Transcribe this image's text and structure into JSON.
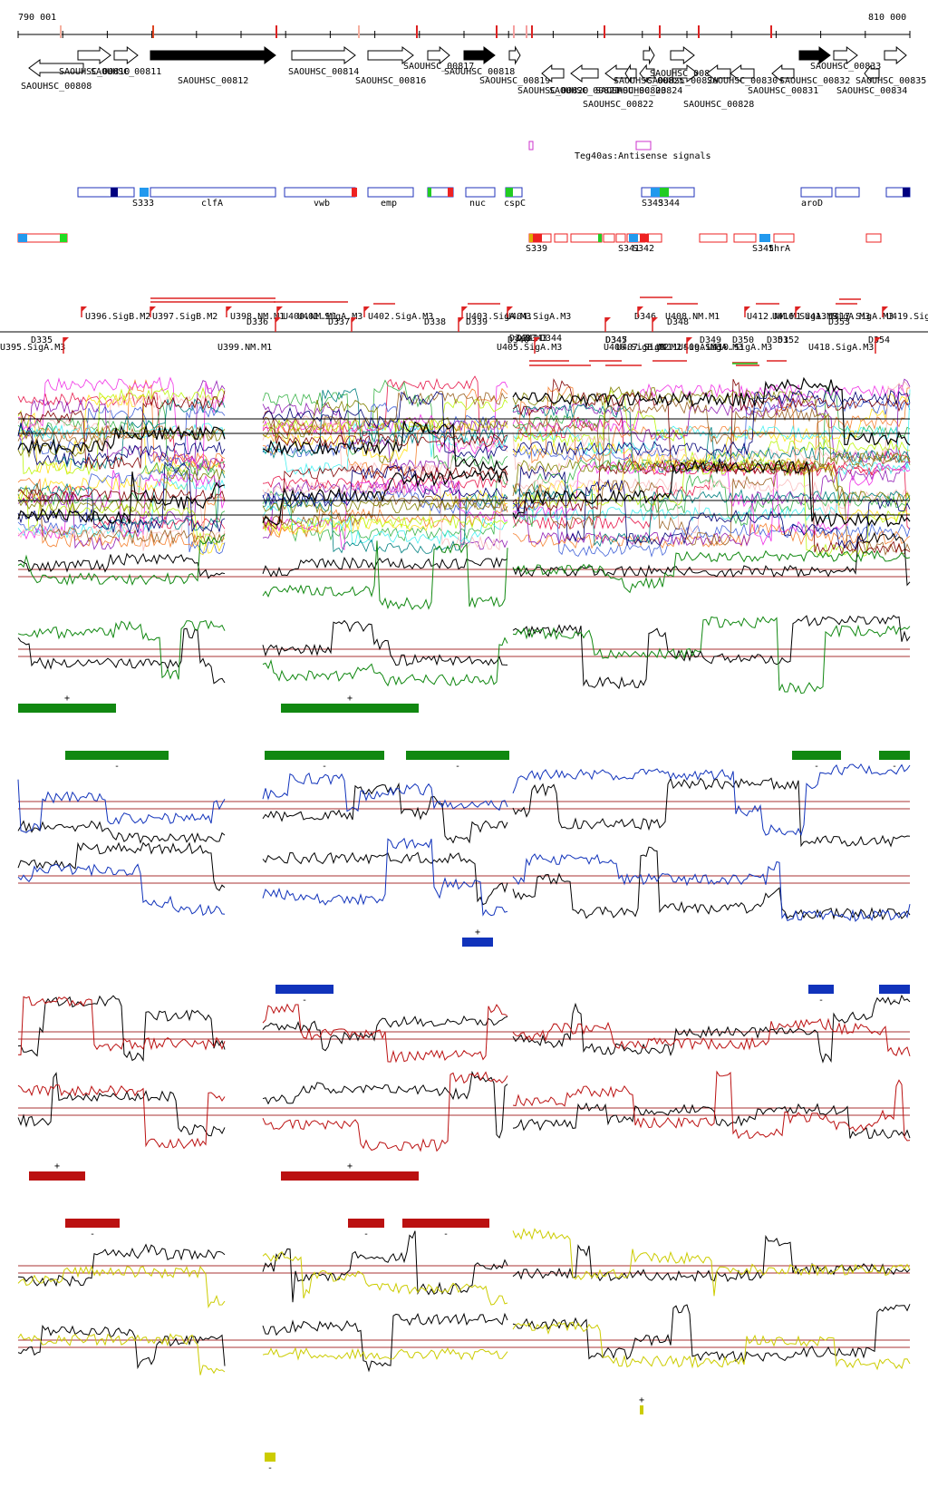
{
  "ruler": {
    "start_label": "790 001",
    "end_label": "810 000"
  },
  "colors": {
    "green": "#118811",
    "blue": "#1133bb",
    "red": "#bb1111",
    "yellow": "#cccc00",
    "black": "#000000",
    "threshold": "#aa3333",
    "magenta": "#cc33cc",
    "reg_red": "#ee2222",
    "reg_blue": "#2233bb",
    "cyan": "#2299ee"
  },
  "genes": [
    {
      "label": "SAOUHSC_00808",
      "strand": "-"
    },
    {
      "label": "SAOUHSC_00810",
      "strand": "+"
    },
    {
      "label": "SAOUHSC_00811",
      "strand": "+"
    },
    {
      "label": "SAOUHSC_00812",
      "strand": "+"
    },
    {
      "label": "SAOUHSC_00814",
      "strand": "+"
    },
    {
      "label": "SAOUHSC_00816",
      "strand": "+"
    },
    {
      "label": "SAOUHSC_00817",
      "strand": "+"
    },
    {
      "label": "SAOUHSC_00818",
      "strand": "+"
    },
    {
      "label": "SAOUHSC_00819",
      "strand": "+"
    },
    {
      "label": "SAOUHSC_00820",
      "strand": "-"
    },
    {
      "label": "SAOUHSC_00821",
      "strand": "-"
    },
    {
      "label": "SAOUHSC_00822",
      "strand": "-"
    },
    {
      "label": "SAOUHSC_00823",
      "strand": "-"
    },
    {
      "label": "SAOUHSC_00824",
      "strand": "-"
    },
    {
      "label": "SAOUHSC_00825",
      "strand": "+"
    },
    {
      "label": "SAOUHSC_00826",
      "strand": "+"
    },
    {
      "label": "SAOUHSC_00827",
      "strand": "+"
    },
    {
      "label": "SAOUHSC_00828",
      "strand": "-"
    },
    {
      "label": "SAOUHSC_00830",
      "strand": "-"
    },
    {
      "label": "SAOUHSC_00831",
      "strand": "-"
    },
    {
      "label": "SAOUHSC_00832",
      "strand": "+"
    },
    {
      "label": "SAOUHSC_00833",
      "strand": "+"
    },
    {
      "label": "SAOUHSC_00834",
      "strand": "-"
    },
    {
      "label": "SAOUHSC_00835",
      "strand": "+"
    }
  ],
  "antisense_label": "Teg40as:Antisense signals",
  "reg_labels": [
    "S333",
    "clfA",
    "vwb",
    "emp",
    "nuc",
    "cspC",
    "S343",
    "S344",
    "aroD",
    "S339",
    "S341",
    "S342",
    "S345",
    "thrA"
  ],
  "unit_labels": [
    "D335",
    "U395.SigA.M3",
    "U396.SigB.M2",
    "U397.SigB.M2",
    "U398.NM.M1",
    "U399.NM.M1",
    "D336",
    "U400.NM.M1",
    "U401.SigA.M3",
    "D337",
    "U402.SigA.M3",
    "D338",
    "U403.SigA.M3",
    "D339",
    "D340",
    "U404.SigA.M3",
    "D341",
    "D342",
    "D343",
    "D344",
    "U405.SigA.M3",
    "U406.SigB.M2",
    "D345",
    "D346",
    "D347",
    "U407.SigB.M2",
    "D348",
    "U408.NM.M1",
    "U409.SigA.M3",
    "D349",
    "U410.SigA.M3",
    "U411.SigA.M3",
    "D350",
    "D351",
    "D352",
    "U412.NM.M1",
    "U413.SigA.M3",
    "U416.SigA.M3",
    "D353",
    "U417.SigA.M3",
    "U418.SigA.M3",
    "U419.SigA.M3",
    "D354"
  ],
  "segment_labels": {
    "plus": "+",
    "minus": "-"
  }
}
